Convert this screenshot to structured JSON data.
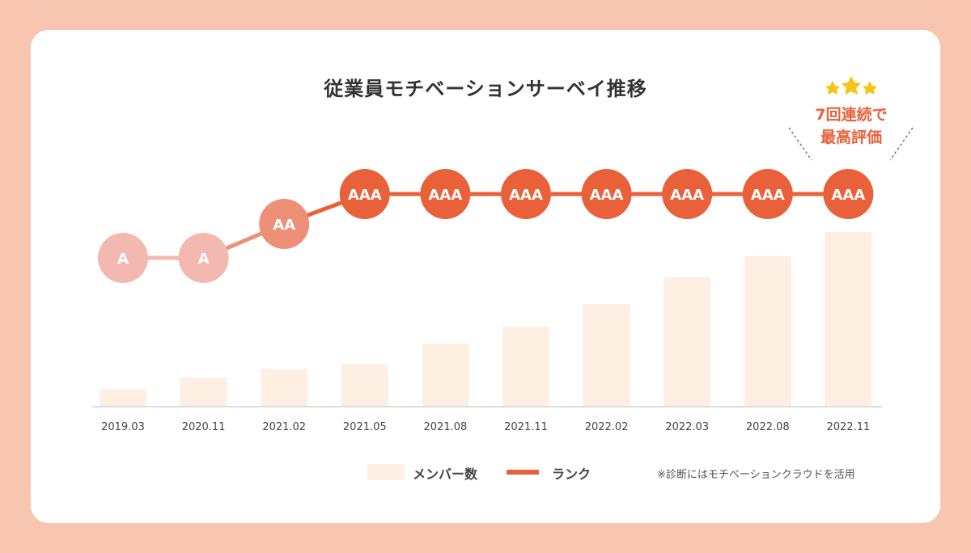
{
  "chart_data": {
    "type": "bar+line",
    "title": "従業員モチベーションサーベイ推移",
    "categories": [
      "2019.03",
      "2020.11",
      "2021.02",
      "2021.05",
      "2021.08",
      "2021.11",
      "2022.02",
      "2022.03",
      "2022.08",
      "2022.11"
    ],
    "series": [
      {
        "name": "メンバー数",
        "type": "bar",
        "values": [
          22,
          36,
          47,
          53,
          79,
          100,
          128,
          162,
          188,
          218
        ]
      },
      {
        "name": "ランク",
        "type": "line",
        "values": [
          "A",
          "A",
          "AA",
          "AAA",
          "AAA",
          "AAA",
          "AAA",
          "AAA",
          "AAA",
          "AAA"
        ],
        "levels": {
          "A": 1,
          "AA": 2,
          "AAA": 3
        }
      }
    ],
    "ylim": [
      0,
      220
    ],
    "annotation": {
      "line1": "7回連続で",
      "line2": "最高評価"
    },
    "note": "※診断にはモチベーションクラウドを活用"
  },
  "colors": {
    "background": "#f8c6b0",
    "bar": "#fdefe2",
    "rank_A": "#f3b8b0",
    "rank_AA": "#ee8f78",
    "rank_AAA": "#e8613a",
    "star": "#f5c518",
    "axis": "#dddddd"
  },
  "legend": {
    "bars": "メンバー数",
    "line": "ランク"
  }
}
